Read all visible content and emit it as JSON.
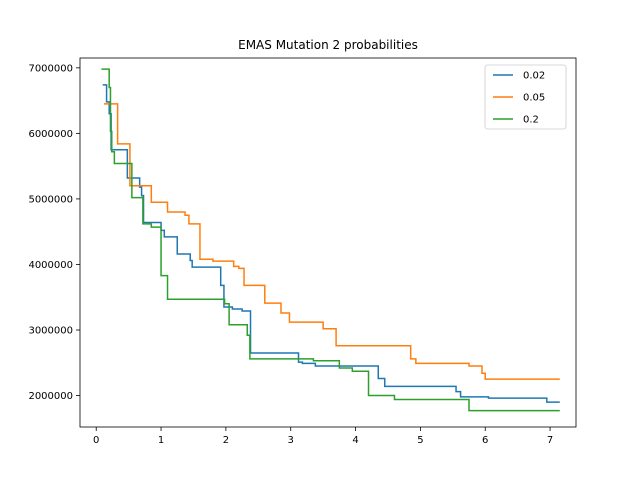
{
  "chart_data": {
    "type": "line",
    "title": "EMAS Mutation 2 probabilities",
    "xlabel": "",
    "ylabel": "",
    "xlim": [
      -0.25,
      7.4
    ],
    "ylim": [
      1520000,
      7150000
    ],
    "xticks": [
      0,
      1,
      2,
      3,
      4,
      5,
      6,
      7
    ],
    "yticks": [
      2000000,
      3000000,
      4000000,
      5000000,
      6000000,
      7000000
    ],
    "xtick_labels": [
      "0",
      "1",
      "2",
      "3",
      "4",
      "5",
      "6",
      "7"
    ],
    "ytick_labels": [
      "2000000",
      "3000000",
      "4000000",
      "5000000",
      "6000000",
      "7000000"
    ],
    "grid": false,
    "legend_position": "top-right",
    "step": "post",
    "series": [
      {
        "name": "0.02",
        "color": "#1f77b4",
        "points": [
          [
            0.1,
            6740000
          ],
          [
            0.16,
            6480000
          ],
          [
            0.2,
            6300000
          ],
          [
            0.23,
            5750000
          ],
          [
            0.48,
            5320000
          ],
          [
            0.67,
            5180000
          ],
          [
            0.7,
            5050000
          ],
          [
            0.73,
            4640000
          ],
          [
            1.0,
            4520000
          ],
          [
            1.05,
            4420000
          ],
          [
            1.25,
            4160000
          ],
          [
            1.45,
            4060000
          ],
          [
            1.48,
            3960000
          ],
          [
            1.92,
            3680000
          ],
          [
            1.97,
            3350000
          ],
          [
            2.1,
            3320000
          ],
          [
            2.25,
            3290000
          ],
          [
            2.38,
            2650000
          ],
          [
            3.12,
            2510000
          ],
          [
            3.18,
            2490000
          ],
          [
            3.38,
            2450000
          ],
          [
            4.35,
            2260000
          ],
          [
            4.45,
            2140000
          ],
          [
            5.55,
            2060000
          ],
          [
            5.62,
            1980000
          ],
          [
            6.05,
            1960000
          ],
          [
            6.95,
            1900000
          ],
          [
            7.15,
            1900000
          ]
        ]
      },
      {
        "name": "0.05",
        "color": "#ff7f0e",
        "points": [
          [
            0.12,
            6450000
          ],
          [
            0.33,
            5840000
          ],
          [
            0.52,
            5200000
          ],
          [
            0.85,
            4950000
          ],
          [
            1.1,
            4800000
          ],
          [
            1.37,
            4750000
          ],
          [
            1.43,
            4620000
          ],
          [
            1.6,
            4080000
          ],
          [
            1.8,
            4050000
          ],
          [
            2.12,
            3970000
          ],
          [
            2.2,
            3940000
          ],
          [
            2.28,
            3680000
          ],
          [
            2.6,
            3410000
          ],
          [
            2.85,
            3260000
          ],
          [
            2.98,
            3120000
          ],
          [
            3.5,
            3020000
          ],
          [
            3.7,
            2760000
          ],
          [
            4.85,
            2560000
          ],
          [
            4.93,
            2490000
          ],
          [
            5.75,
            2450000
          ],
          [
            5.95,
            2340000
          ],
          [
            6.0,
            2250000
          ],
          [
            7.15,
            2250000
          ]
        ]
      },
      {
        "name": "0.2",
        "color": "#2ca02c",
        "points": [
          [
            0.08,
            6980000
          ],
          [
            0.2,
            6700000
          ],
          [
            0.22,
            6030000
          ],
          [
            0.24,
            5720000
          ],
          [
            0.28,
            5540000
          ],
          [
            0.55,
            5020000
          ],
          [
            0.72,
            4620000
          ],
          [
            0.85,
            4570000
          ],
          [
            1.0,
            3830000
          ],
          [
            1.1,
            3470000
          ],
          [
            1.98,
            3400000
          ],
          [
            2.05,
            3080000
          ],
          [
            2.33,
            2920000
          ],
          [
            2.37,
            2560000
          ],
          [
            3.35,
            2530000
          ],
          [
            3.75,
            2420000
          ],
          [
            3.95,
            2370000
          ],
          [
            4.2,
            2000000
          ],
          [
            4.6,
            1940000
          ],
          [
            5.75,
            1770000
          ],
          [
            7.15,
            1770000
          ]
        ]
      }
    ]
  }
}
